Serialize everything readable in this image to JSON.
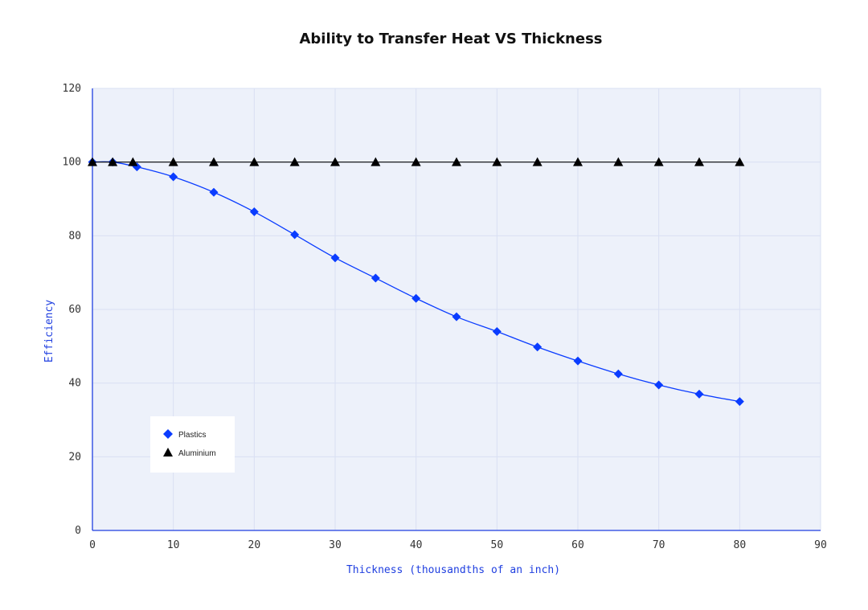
{
  "chart_data": {
    "type": "line",
    "title": "Ability to Transfer Heat VS Thickness",
    "xlabel": "Thickness (thousandths of an inch)",
    "ylabel": "Efficiency",
    "xlim": [
      0,
      90
    ],
    "ylim": [
      0,
      120
    ],
    "xticks": [
      "0",
      "10",
      "20",
      "30",
      "40",
      "50",
      "60",
      "70",
      "80",
      "90"
    ],
    "yticks": [
      "0",
      "20",
      "40",
      "60",
      "80",
      "100",
      "120"
    ],
    "grid": true,
    "legend_position": "bottom-left",
    "series": [
      {
        "name": "Plastics",
        "marker": "diamond",
        "color": "#0a3cff",
        "smooth": true,
        "x": [
          0,
          2.5,
          5.5,
          10,
          15,
          20,
          25,
          30,
          35,
          40,
          45,
          50,
          55,
          60,
          65,
          70,
          75,
          80
        ],
        "y": [
          100,
          100,
          98.7,
          96,
          91.8,
          86.5,
          80.3,
          74,
          68.5,
          63,
          58,
          54,
          49.8,
          46,
          42.5,
          39.5,
          37,
          35
        ]
      },
      {
        "name": "Aluminium",
        "marker": "triangle",
        "color": "#000000",
        "smooth": false,
        "x": [
          0,
          2.5,
          5,
          10,
          15,
          20,
          25,
          30,
          35,
          40,
          45,
          50,
          55,
          60,
          65,
          70,
          75,
          80
        ],
        "y": [
          100,
          100,
          100,
          100,
          100,
          100,
          100,
          100,
          100,
          100,
          100,
          100,
          100,
          100,
          100,
          100,
          100,
          100
        ]
      }
    ]
  },
  "colors": {
    "plot_background": "#edf1fa",
    "grid": "#d9e0f3",
    "axis": "#1f3fe0"
  }
}
